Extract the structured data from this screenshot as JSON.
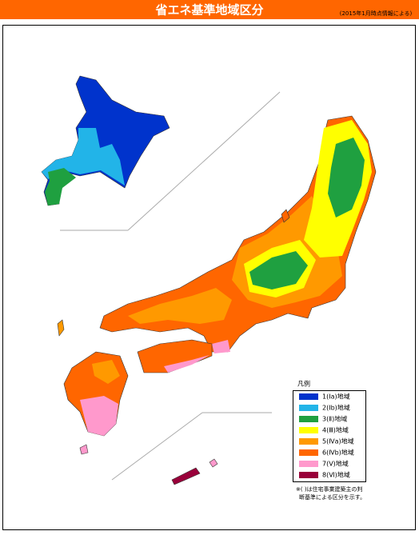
{
  "header": {
    "title": "省エネ基準地域区分",
    "note": "(2015年1月時点情報による)"
  },
  "legend": {
    "title": "凡例",
    "items": [
      {
        "label": "1(Ⅰa)地域",
        "color": "#0033cc"
      },
      {
        "label": "2(Ⅰb)地域",
        "color": "#22b4e8"
      },
      {
        "label": "3(Ⅱ)地域",
        "color": "#1fa040"
      },
      {
        "label": "4(Ⅲ)地域",
        "color": "#ffff00"
      },
      {
        "label": "5(Ⅳa)地域",
        "color": "#ff9900"
      },
      {
        "label": "6(Ⅳb)地域",
        "color": "#ff6600"
      },
      {
        "label": "7(Ⅴ)地域",
        "color": "#ff99cc"
      },
      {
        "label": "8(Ⅵ)地域",
        "color": "#99003a"
      }
    ]
  },
  "footnote": {
    "line1": "※( )は住宅事業建築主の判",
    "line2": "断基準による区分を示す。"
  }
}
